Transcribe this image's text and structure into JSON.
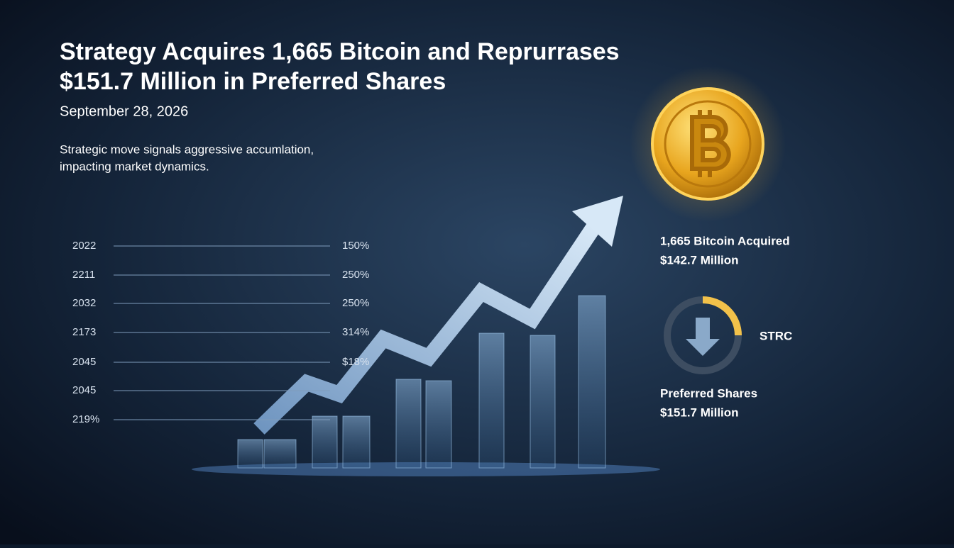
{
  "header": {
    "title_lines": [
      "Strategy Acquires 1,665 Bitcoin and Reprurrases",
      "$151.7 Million in Preferred Shares"
    ],
    "date": "September 28, 2026",
    "subtitle_lines": [
      "Strategic move signals aggressive accumlation,",
      "impacting market dynamics."
    ]
  },
  "rows": [
    {
      "left": "2022",
      "right": "150%"
    },
    {
      "left": "2211",
      "right": "250%"
    },
    {
      "left": "2032",
      "right": "250%"
    },
    {
      "left": "2173",
      "right": "314%"
    },
    {
      "left": "2045",
      "right": "$18%"
    },
    {
      "left": "2045"
    },
    {
      "left": "219%"
    }
  ],
  "panel": {
    "acquired": "1,665 Bitcoin Acquired",
    "acquired_amount": "$142.7 Million",
    "ticker": "STRC",
    "preferred": "Preferred Shares",
    "preferred_amount": "$151.7 Million"
  }
}
